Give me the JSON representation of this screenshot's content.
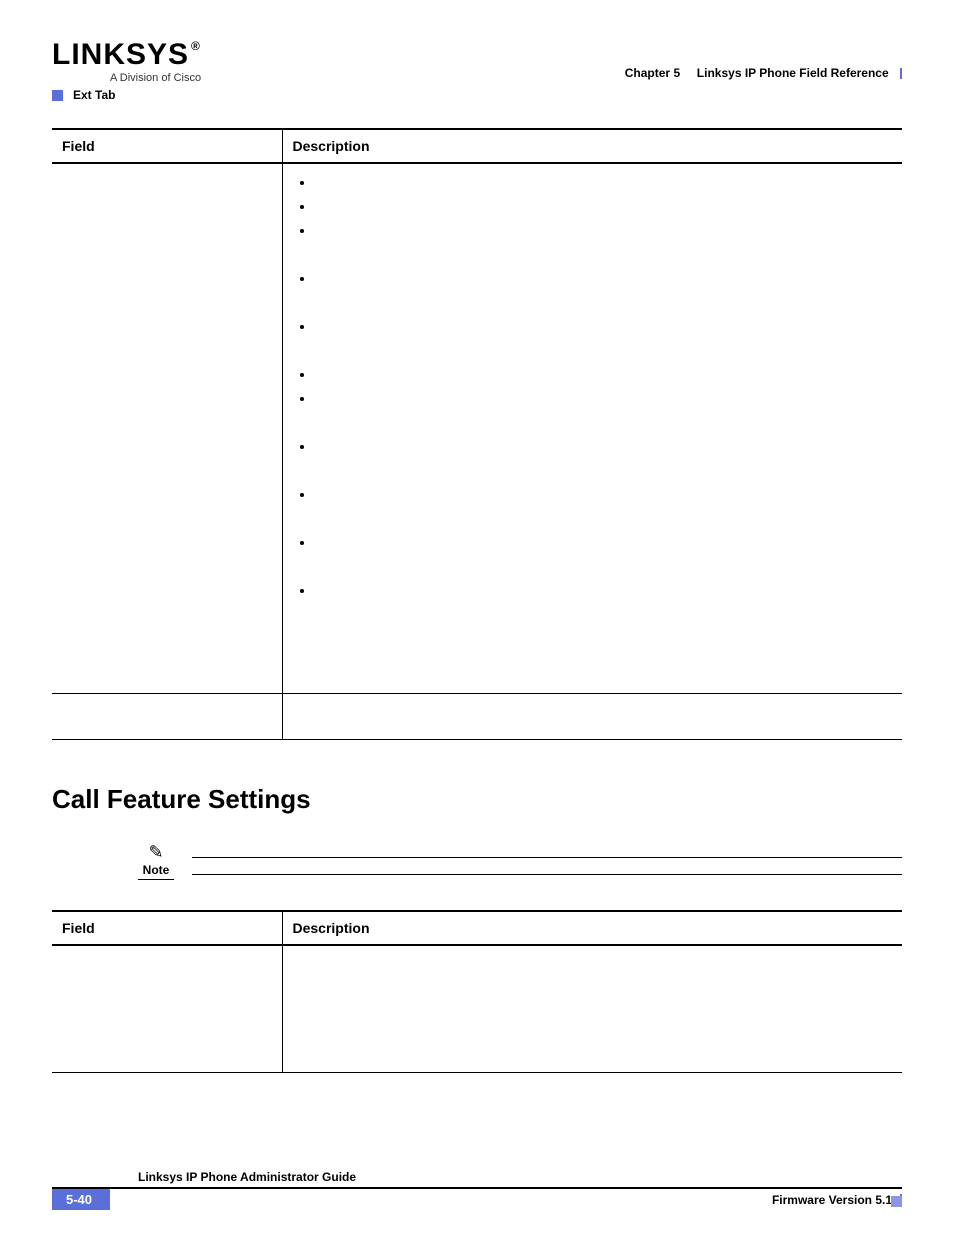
{
  "header": {
    "logo_main": "LINKSYS",
    "logo_reg": "®",
    "logo_sub": "A Division of Cisco",
    "chapter_label": "Chapter 5",
    "chapter_title": "Linksys IP Phone Field Reference",
    "breadcrumb": "Ext Tab"
  },
  "table1": {
    "headers": {
      "field": "Field",
      "description": "Description"
    },
    "bullets_count": 11,
    "bullet_gaps": [
      3,
      4,
      5,
      7,
      8,
      9,
      10
    ]
  },
  "section_title": "Call Feature Settings",
  "note": {
    "label": "Note"
  },
  "table2": {
    "headers": {
      "field": "Field",
      "description": "Description"
    }
  },
  "footer": {
    "guide_title": "Linksys IP Phone Administrator Guide",
    "page_number": "5-40",
    "version": "Firmware Version 5.1"
  },
  "colors": {
    "accent": "#5b6fd8",
    "accent_light": "#8a96e4",
    "text": "#000000",
    "bg": "#ffffff"
  }
}
